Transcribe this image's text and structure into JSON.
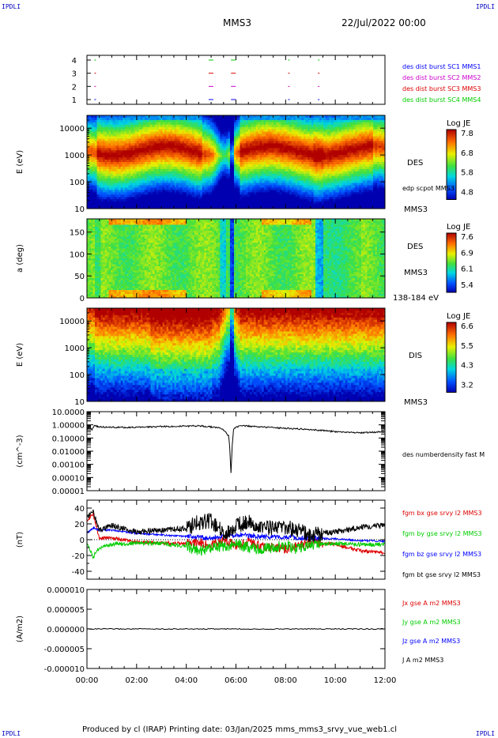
{
  "header": {
    "corner_tl": "IPDLI",
    "corner_tr": "IPDLI",
    "corner_bl": "IPDLI",
    "corner_br": "IPDLI",
    "spacecraft": "MMS3",
    "date": "22/Jul/2022 00:00"
  },
  "footer": {
    "text": "Produced by cl (IRAP)   Printing date: 03/Jan/2025   mms_mms3_srvy_vue_web1.cl"
  },
  "colors": {
    "mms1": "#0000ff",
    "mms2": "#cc00cc",
    "mms3": "#dd0000",
    "mms4": "#00cc00",
    "bx": "#dd0000",
    "by": "#00cc00",
    "bz": "#0000ff",
    "bt": "#000000"
  },
  "chart_data": [
    {
      "type": "line",
      "panel": "burst",
      "ylim": [
        1,
        4
      ],
      "yticks": [
        "1",
        "2",
        "3",
        "4"
      ],
      "legend": [
        "des dist burst SC1 MMS1",
        "des dist burst SC2 MMS2",
        "des dist burst SC3 MMS3",
        "des dist burst SC4 MMS4"
      ],
      "burst_hours": [
        0.3,
        4.9,
        5.8,
        8.1,
        9.3
      ]
    },
    {
      "type": "heatmap",
      "panel": "des_energy",
      "ylabel": "E (eV)",
      "yticks": [
        "10",
        "100",
        "1000",
        "10000"
      ],
      "yscale": "log",
      "ylim": [
        10,
        30000
      ],
      "right_labels": [
        "DES",
        "edp scpot MMS3",
        "MMS3"
      ],
      "colorbar": {
        "title": "Log JE",
        "ticks": [
          "7.8",
          "6.8",
          "5.8",
          "4.8"
        ],
        "range": [
          4.8,
          7.8
        ]
      }
    },
    {
      "type": "heatmap",
      "panel": "des_pitch",
      "ylabel": "a (deg)",
      "yticks": [
        "0",
        "50",
        "100",
        "150"
      ],
      "ylim": [
        0,
        180
      ],
      "right_labels": [
        "DES",
        "MMS3",
        "138-184 eV"
      ],
      "colorbar": {
        "title": "Log JE",
        "ticks": [
          "7.6",
          "6.9",
          "6.1",
          "5.4"
        ],
        "range": [
          5.4,
          7.6
        ]
      }
    },
    {
      "type": "heatmap",
      "panel": "dis_energy",
      "ylabel": "E (eV)",
      "yticks": [
        "10",
        "100",
        "1000",
        "10000"
      ],
      "yscale": "log",
      "ylim": [
        10,
        30000
      ],
      "right_labels": [
        "DIS",
        "MMS3"
      ],
      "colorbar": {
        "title": "Log JE",
        "ticks": [
          "6.6",
          "5.5",
          "4.3",
          "3.2"
        ],
        "range": [
          3.2,
          6.6
        ]
      }
    },
    {
      "type": "line",
      "panel": "density",
      "ylabel": "(cm^-3)",
      "yscale": "log",
      "ylim": [
        0.0001,
        10
      ],
      "yticks": [
        "10.0000",
        "1.00000",
        "0.10000",
        "0.01000",
        "0.00100",
        "0.00010",
        "0.00001"
      ],
      "series": [
        {
          "name": "des numberdensity fast M",
          "x": [
            0,
            0.1,
            0.2,
            0.3,
            0.5,
            1,
            2,
            3,
            4,
            4.5,
            5,
            5.3,
            5.5,
            5.6,
            5.7,
            5.75,
            5.8,
            5.85,
            5.9,
            6,
            6.3,
            7,
            8,
            9,
            10,
            11,
            12
          ],
          "y": [
            0.5,
            0.8,
            0.45,
            0.9,
            0.7,
            0.65,
            0.65,
            0.75,
            0.8,
            0.85,
            0.7,
            0.6,
            0.4,
            0.25,
            0.15,
            0.02,
            0.0002,
            0.03,
            0.4,
            0.7,
            0.85,
            0.7,
            0.55,
            0.45,
            0.3,
            0.25,
            0.3
          ]
        }
      ]
    },
    {
      "type": "line",
      "panel": "fgm",
      "ylabel": "(nT)",
      "ylim": [
        -50,
        50
      ],
      "yticks": [
        "40",
        "20",
        "0",
        "-20",
        "-40"
      ],
      "series": [
        {
          "name": "fgm bx gse srvy l2 MMS3",
          "x": [
            0,
            0.25,
            0.5,
            1,
            2,
            3,
            4,
            4.5,
            5,
            5.5,
            6,
            6.5,
            7,
            8,
            8.5,
            9,
            10,
            10.5,
            11,
            12
          ],
          "y": [
            25,
            32,
            2,
            2,
            -3,
            -4,
            -5,
            -3,
            -6,
            0,
            -7,
            -3,
            -8,
            -12,
            -8,
            -4,
            -6,
            -10,
            -14,
            -17
          ]
        },
        {
          "name": "fgm by gse srvy l2 MMS3",
          "x": [
            0,
            0.25,
            0.5,
            1,
            2,
            3,
            4,
            4.5,
            5,
            5.5,
            6,
            6.5,
            7,
            8,
            8.5,
            9,
            10,
            10.5,
            11,
            12
          ],
          "y": [
            -5,
            -22,
            -10,
            -6,
            -4,
            -5,
            -8,
            -15,
            -10,
            -8,
            -6,
            -10,
            -12,
            -7,
            -12,
            -6,
            -5,
            -5,
            -6,
            -6
          ]
        },
        {
          "name": "fgm bz gse srvy l2 MMS3",
          "x": [
            0,
            0.25,
            0.5,
            1,
            2,
            3,
            4,
            4.5,
            5,
            5.5,
            6,
            6.5,
            7,
            8,
            8.5,
            9,
            10,
            10.5,
            11,
            12
          ],
          "y": [
            8,
            15,
            12,
            12,
            8,
            6,
            4,
            3,
            2,
            4,
            6,
            5,
            4,
            3,
            2,
            2,
            1,
            0,
            -1,
            -2
          ]
        },
        {
          "name": "fgm bt gse srvy l2 MMS3",
          "x": [
            0,
            0.25,
            0.5,
            1,
            2,
            3,
            4,
            4.5,
            5,
            5.5,
            6,
            6.5,
            7,
            8,
            8.5,
            9,
            10,
            10.5,
            11,
            12
          ],
          "y": [
            28,
            36,
            12,
            18,
            10,
            12,
            14,
            22,
            24,
            8,
            18,
            22,
            14,
            16,
            12,
            6,
            10,
            12,
            16,
            18
          ]
        }
      ]
    },
    {
      "type": "line",
      "panel": "current",
      "ylabel": "(A/m2)",
      "ylim": [
        -0.0001,
        0.0001
      ],
      "yticks": [
        "0.000010",
        "0.000005",
        "0.000000",
        "-0.000005",
        "-0.000010"
      ],
      "series": [
        {
          "name": "Jx gse A m2 MMS3",
          "x": [
            0,
            12
          ],
          "y": [
            0,
            0
          ]
        },
        {
          "name": "Jy gse A m2 MMS3",
          "x": [
            0,
            12
          ],
          "y": [
            0,
            0
          ]
        },
        {
          "name": "Jz gse A m2 MMS3",
          "x": [
            0,
            12
          ],
          "y": [
            0,
            0
          ]
        },
        {
          "name": "J A m2 MMS3",
          "x": [
            0,
            12
          ],
          "y": [
            0,
            0
          ]
        }
      ]
    }
  ],
  "xaxis": {
    "ticks": [
      "00:00",
      "02:00",
      "04:00",
      "06:00",
      "08:00",
      "10:00",
      "12:00"
    ],
    "xlim": [
      0,
      12
    ]
  }
}
